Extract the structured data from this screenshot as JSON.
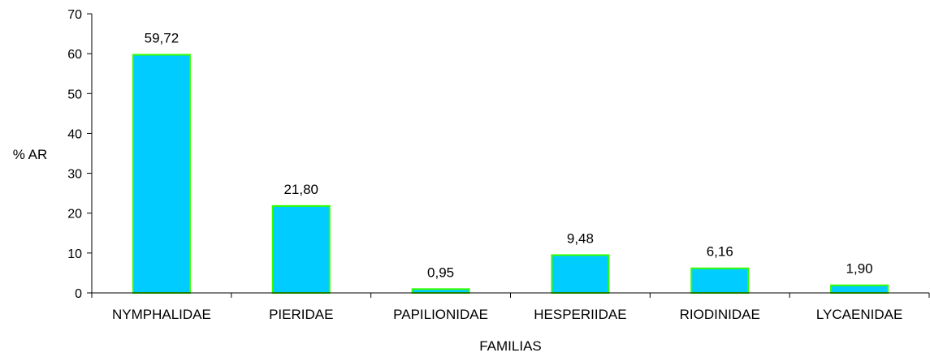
{
  "chart_data": {
    "type": "bar",
    "title": "",
    "xlabel": "FAMILIAS",
    "ylabel": "% AR",
    "categories": [
      "NYMPHALIDAE",
      "PIERIDAE",
      "PAPILIONIDAE",
      "HESPERIIDAE",
      "RIODINIDAE",
      "LYCAENIDAE"
    ],
    "values": [
      59.72,
      21.8,
      0.95,
      9.48,
      6.16,
      1.9
    ],
    "value_labels": [
      "59,72",
      "21,80",
      "0,95",
      "9,48",
      "6,16",
      "1,90"
    ],
    "ylim": [
      0,
      70
    ],
    "yticks": [
      0,
      10,
      20,
      30,
      40,
      50,
      60,
      70
    ],
    "ytick_labels": [
      "0",
      "10",
      "20",
      "30",
      "40",
      "50",
      "60",
      "70"
    ],
    "grid": false,
    "legend": false,
    "colors": {
      "bar_fill": "#00ccff",
      "bar_stroke": "#33ff00",
      "axis": "#000000"
    }
  }
}
